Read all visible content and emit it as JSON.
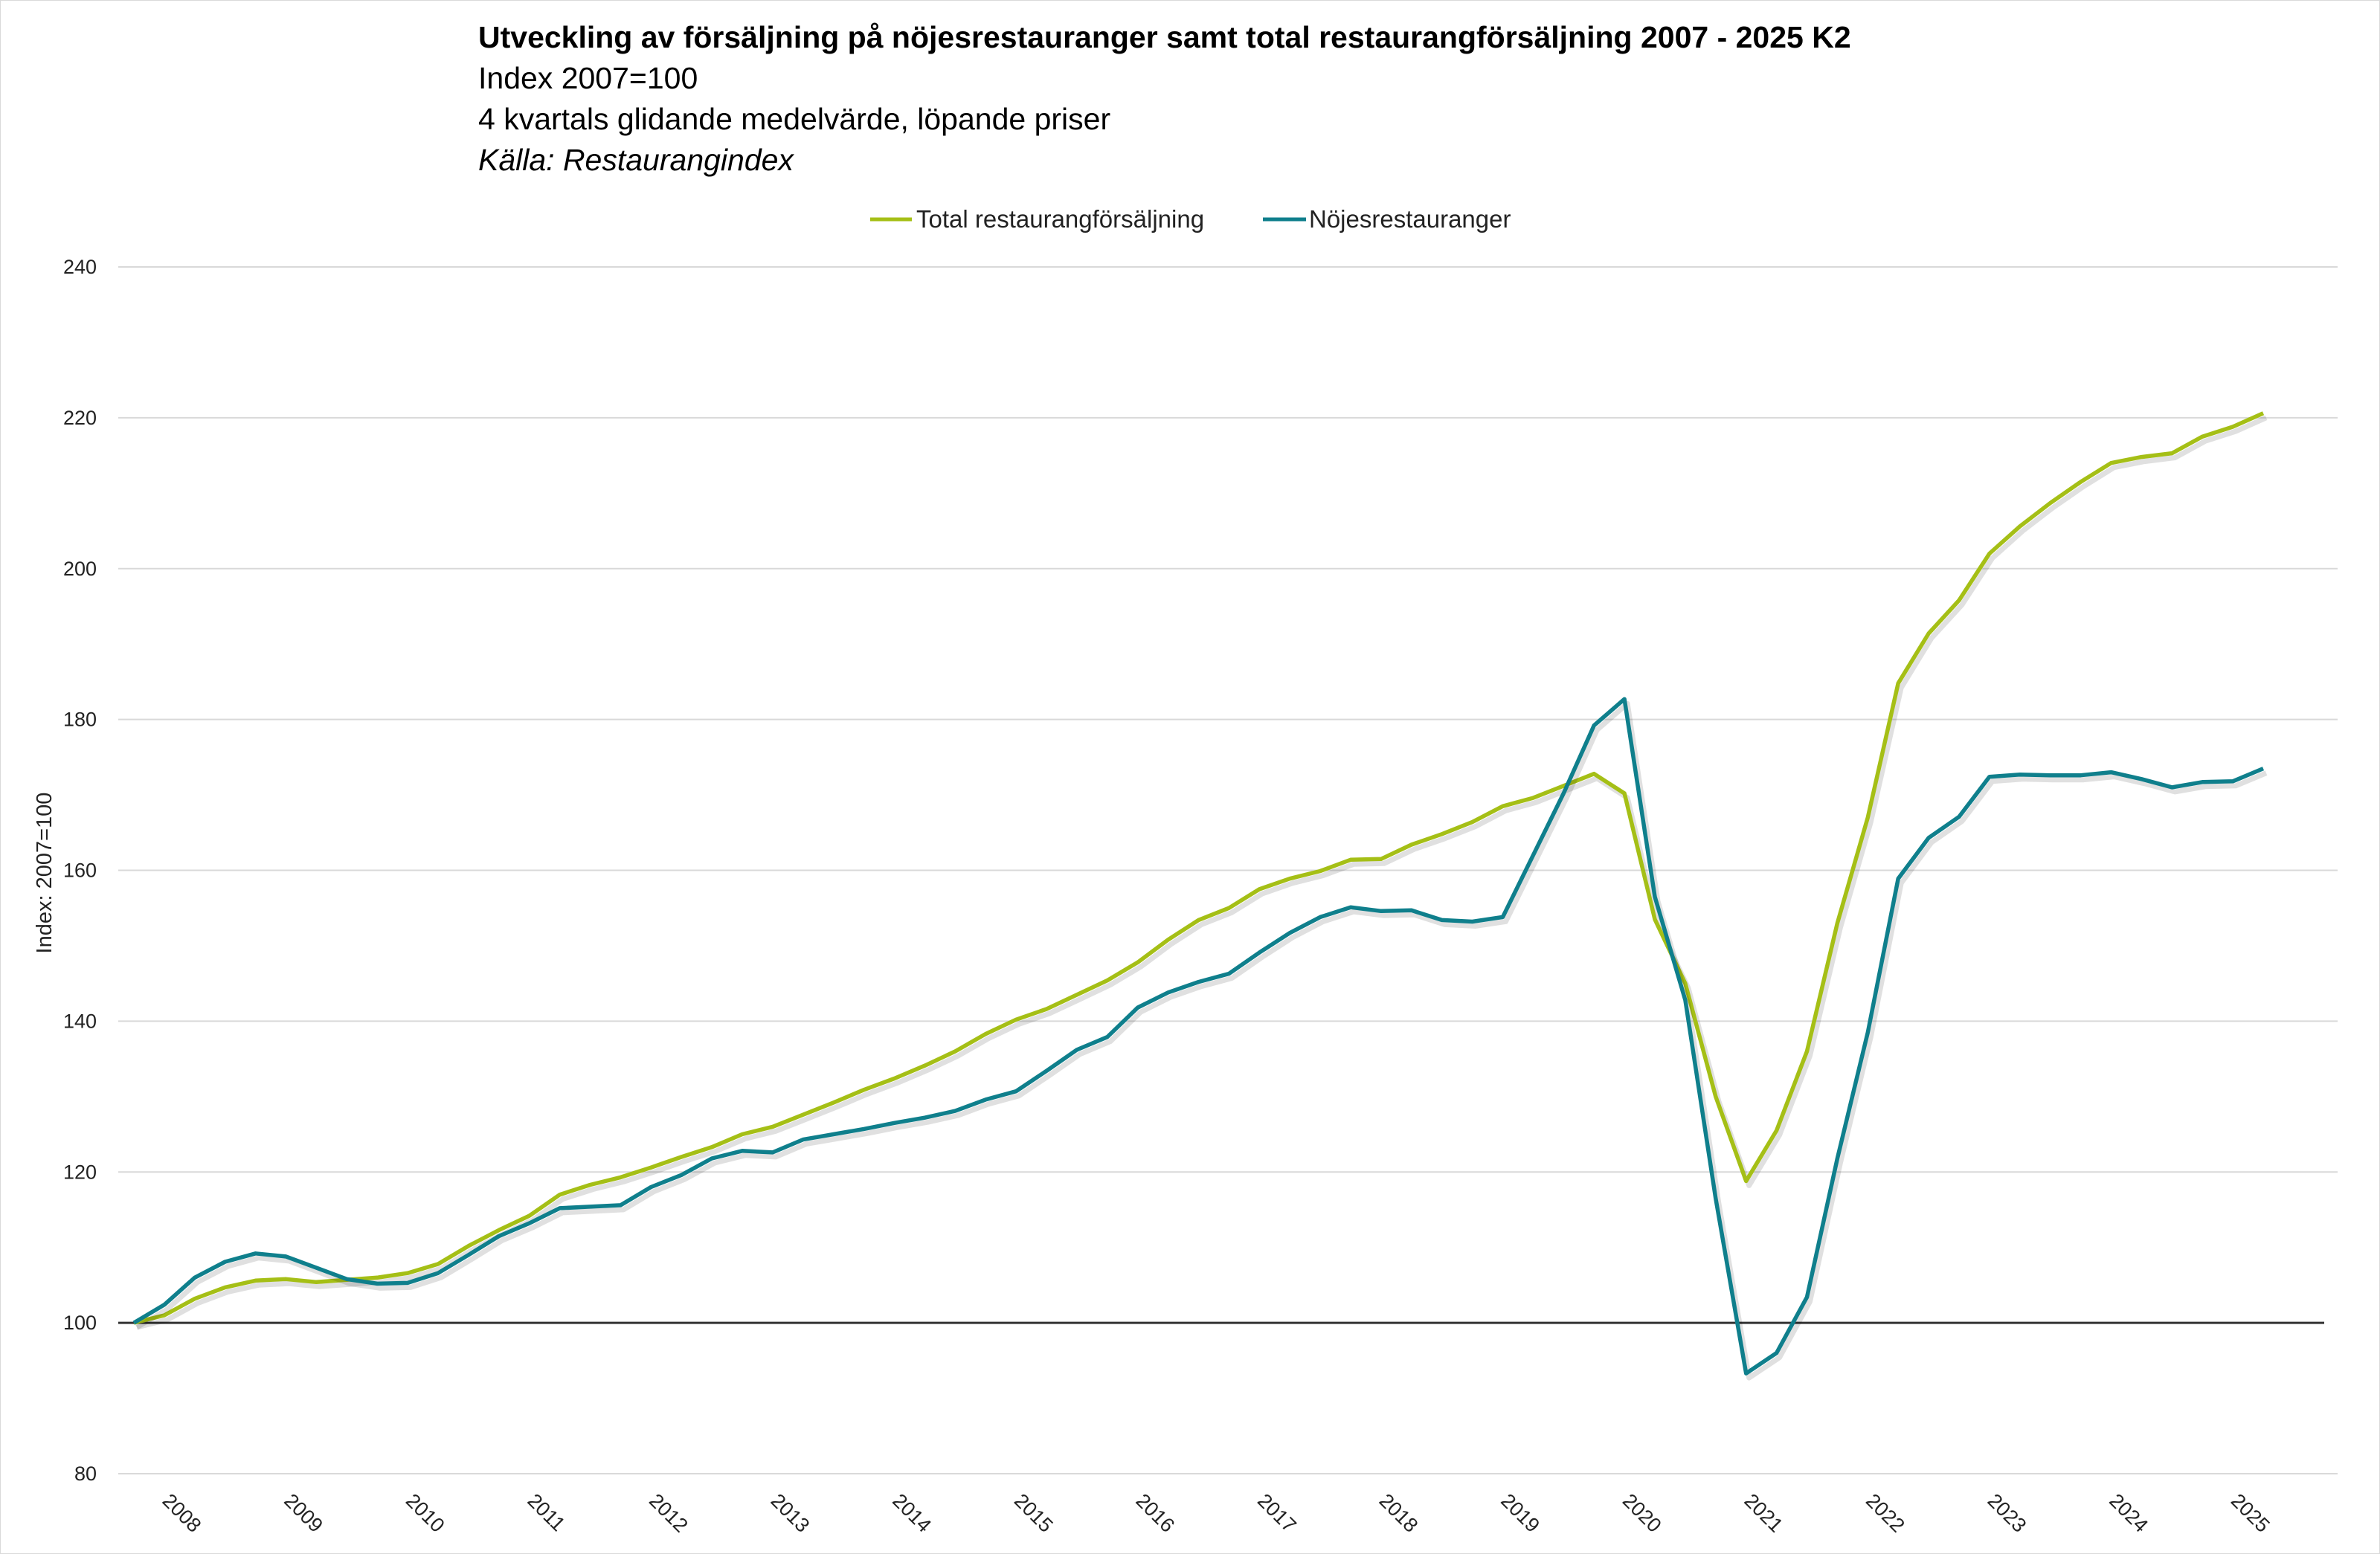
{
  "chart_data": {
    "type": "line",
    "title": "Utveckling av försäljning på nöjesrestauranger samt total restaurangförsäljning 2007 - 2025 K2",
    "subtitle_lines": [
      "Index 2007=100",
      "4 kvartals glidande medelvärde, löpande priser"
    ],
    "source": "Källa: Restaurangindex",
    "xlabel": "",
    "ylabel": "Index: 2007=100",
    "ylim": [
      80,
      240
    ],
    "yticks": [
      "80",
      "100",
      "120",
      "140",
      "160",
      "180",
      "200",
      "220",
      "240"
    ],
    "year_labels": [
      "2008",
      "2009",
      "2010",
      "2011",
      "2012",
      "2013",
      "2014",
      "2015",
      "2016",
      "2017",
      "2018",
      "2019",
      "2020",
      "2021",
      "2022",
      "2023",
      "2024",
      "2025"
    ],
    "x_start": "2007 K4",
    "x_end": "2025 K2",
    "frequency": "quarterly",
    "grid": true,
    "reference_line": 100,
    "legend_position": "top-center",
    "series": [
      {
        "name": "Total restaurangförsäljning",
        "color": "#a5bf16",
        "values": [
          100,
          101,
          103.2,
          104.7,
          105.6,
          105.8,
          105.4,
          105.7,
          106,
          106.6,
          107.8,
          110.2,
          112.3,
          114.2,
          117,
          118.3,
          119.3,
          120.6,
          122,
          123.3,
          125,
          126,
          127.6,
          129.2,
          130.9,
          132.4,
          134.1,
          136,
          138.3,
          140.2,
          141.6,
          143.5,
          145.4,
          147.8,
          150.8,
          153.4,
          155,
          157.5,
          158.9,
          159.9,
          161.4,
          161.5,
          163.4,
          164.8,
          166.4,
          168.5,
          169.6,
          171.2,
          172.8,
          170.2,
          153.5,
          145,
          130,
          118.8,
          125.5,
          136,
          153,
          167,
          184.8,
          191.4,
          195.8,
          202,
          205.6,
          208.7,
          211.5,
          214,
          214.8,
          215.3,
          217.5,
          218.8,
          220.6
        ]
      },
      {
        "name": "Nöjesrestauranger",
        "color": "#0f7f8c",
        "values": [
          100,
          102.4,
          106,
          108.1,
          109.2,
          108.8,
          107.3,
          105.8,
          105.2,
          105.3,
          106.6,
          109,
          111.5,
          113.2,
          115.2,
          115.4,
          115.6,
          118,
          119.6,
          121.8,
          122.8,
          122.6,
          124.3,
          125,
          125.7,
          126.5,
          127.2,
          128.1,
          129.6,
          130.7,
          133.4,
          136.2,
          137.9,
          141.8,
          143.8,
          145.2,
          146.3,
          149.1,
          151.7,
          153.8,
          155.1,
          154.6,
          154.7,
          153.4,
          153.2,
          153.8,
          162,
          170.2,
          179.2,
          182.7,
          156.5,
          142.8,
          116.5,
          93.3,
          96,
          103.4,
          121.8,
          138.5,
          158.9,
          164.3,
          167.1,
          172.4,
          172.7,
          172.6,
          172.6,
          173,
          172.1,
          171,
          171.7,
          171.8,
          173.5
        ]
      }
    ]
  }
}
